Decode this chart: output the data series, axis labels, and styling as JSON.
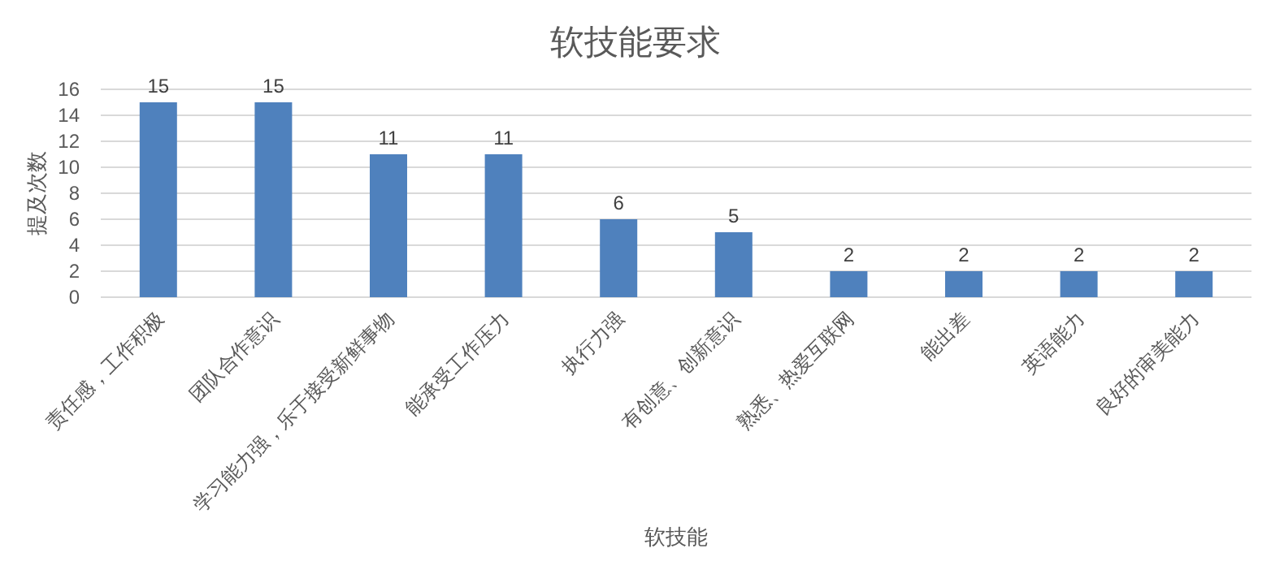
{
  "chart_data": {
    "type": "bar",
    "title": "软技能要求",
    "xlabel": "软技能",
    "ylabel": "提及次数",
    "categories": [
      "责任感，工作积极",
      "团队合作意识",
      "学习能力强，乐于接受新鲜事物",
      "能承受工作压力",
      "执行力强",
      "有创意、创新意识",
      "熟悉、热爱互联网",
      "能出差",
      "英语能力",
      "良好的审美能力"
    ],
    "values": [
      15,
      15,
      11,
      11,
      6,
      5,
      2,
      2,
      2,
      2
    ],
    "color": "#4f81bd",
    "ylim": [
      0,
      16
    ],
    "yticks": [
      0,
      2,
      4,
      6,
      8,
      10,
      12,
      14,
      16
    ],
    "grid": "y",
    "data_labels": true
  }
}
